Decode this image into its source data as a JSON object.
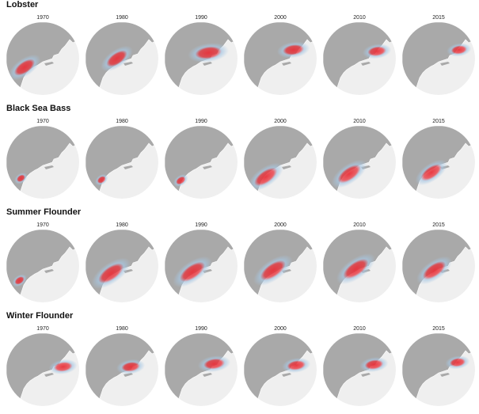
{
  "years": [
    "1970",
    "1980",
    "1990",
    "2000",
    "2010",
    "2015"
  ],
  "colors": {
    "ocean": "#efefef",
    "land": "#a9a9a9",
    "coast": "#ffffff",
    "cold": "#a8c8e4",
    "hot": "#e8313a"
  },
  "species": [
    {
      "name": "Lobster",
      "shift": [
        [
          0.25,
          0.62
        ],
        [
          0.43,
          0.5
        ],
        [
          0.6,
          0.42
        ],
        [
          0.68,
          0.38
        ],
        [
          0.74,
          0.4
        ],
        [
          0.78,
          0.38
        ]
      ],
      "spread": [
        0.9,
        0.9,
        1.0,
        0.8,
        0.7,
        0.6
      ]
    },
    {
      "name": "Black Sea Bass",
      "shift": [
        [
          0.2,
          0.72
        ],
        [
          0.22,
          0.74
        ],
        [
          0.22,
          0.75
        ],
        [
          0.3,
          0.7
        ],
        [
          0.36,
          0.66
        ],
        [
          0.4,
          0.64
        ]
      ],
      "spread": [
        0.35,
        0.35,
        0.4,
        1.0,
        1.0,
        0.9
      ]
    },
    {
      "name": "Summer Flounder",
      "shift": [
        [
          0.18,
          0.7
        ],
        [
          0.35,
          0.6
        ],
        [
          0.38,
          0.58
        ],
        [
          0.4,
          0.56
        ],
        [
          0.45,
          0.54
        ],
        [
          0.44,
          0.56
        ]
      ],
      "spread": [
        0.4,
        1.1,
        1.1,
        1.1,
        1.1,
        1.0
      ]
    },
    {
      "name": "Winter Flounder",
      "shift": [
        [
          0.78,
          0.46
        ],
        [
          0.62,
          0.46
        ],
        [
          0.68,
          0.42
        ],
        [
          0.72,
          0.44
        ],
        [
          0.7,
          0.43
        ],
        [
          0.76,
          0.4
        ]
      ],
      "spread": [
        0.7,
        0.7,
        0.8,
        0.7,
        0.7,
        0.6
      ]
    }
  ]
}
